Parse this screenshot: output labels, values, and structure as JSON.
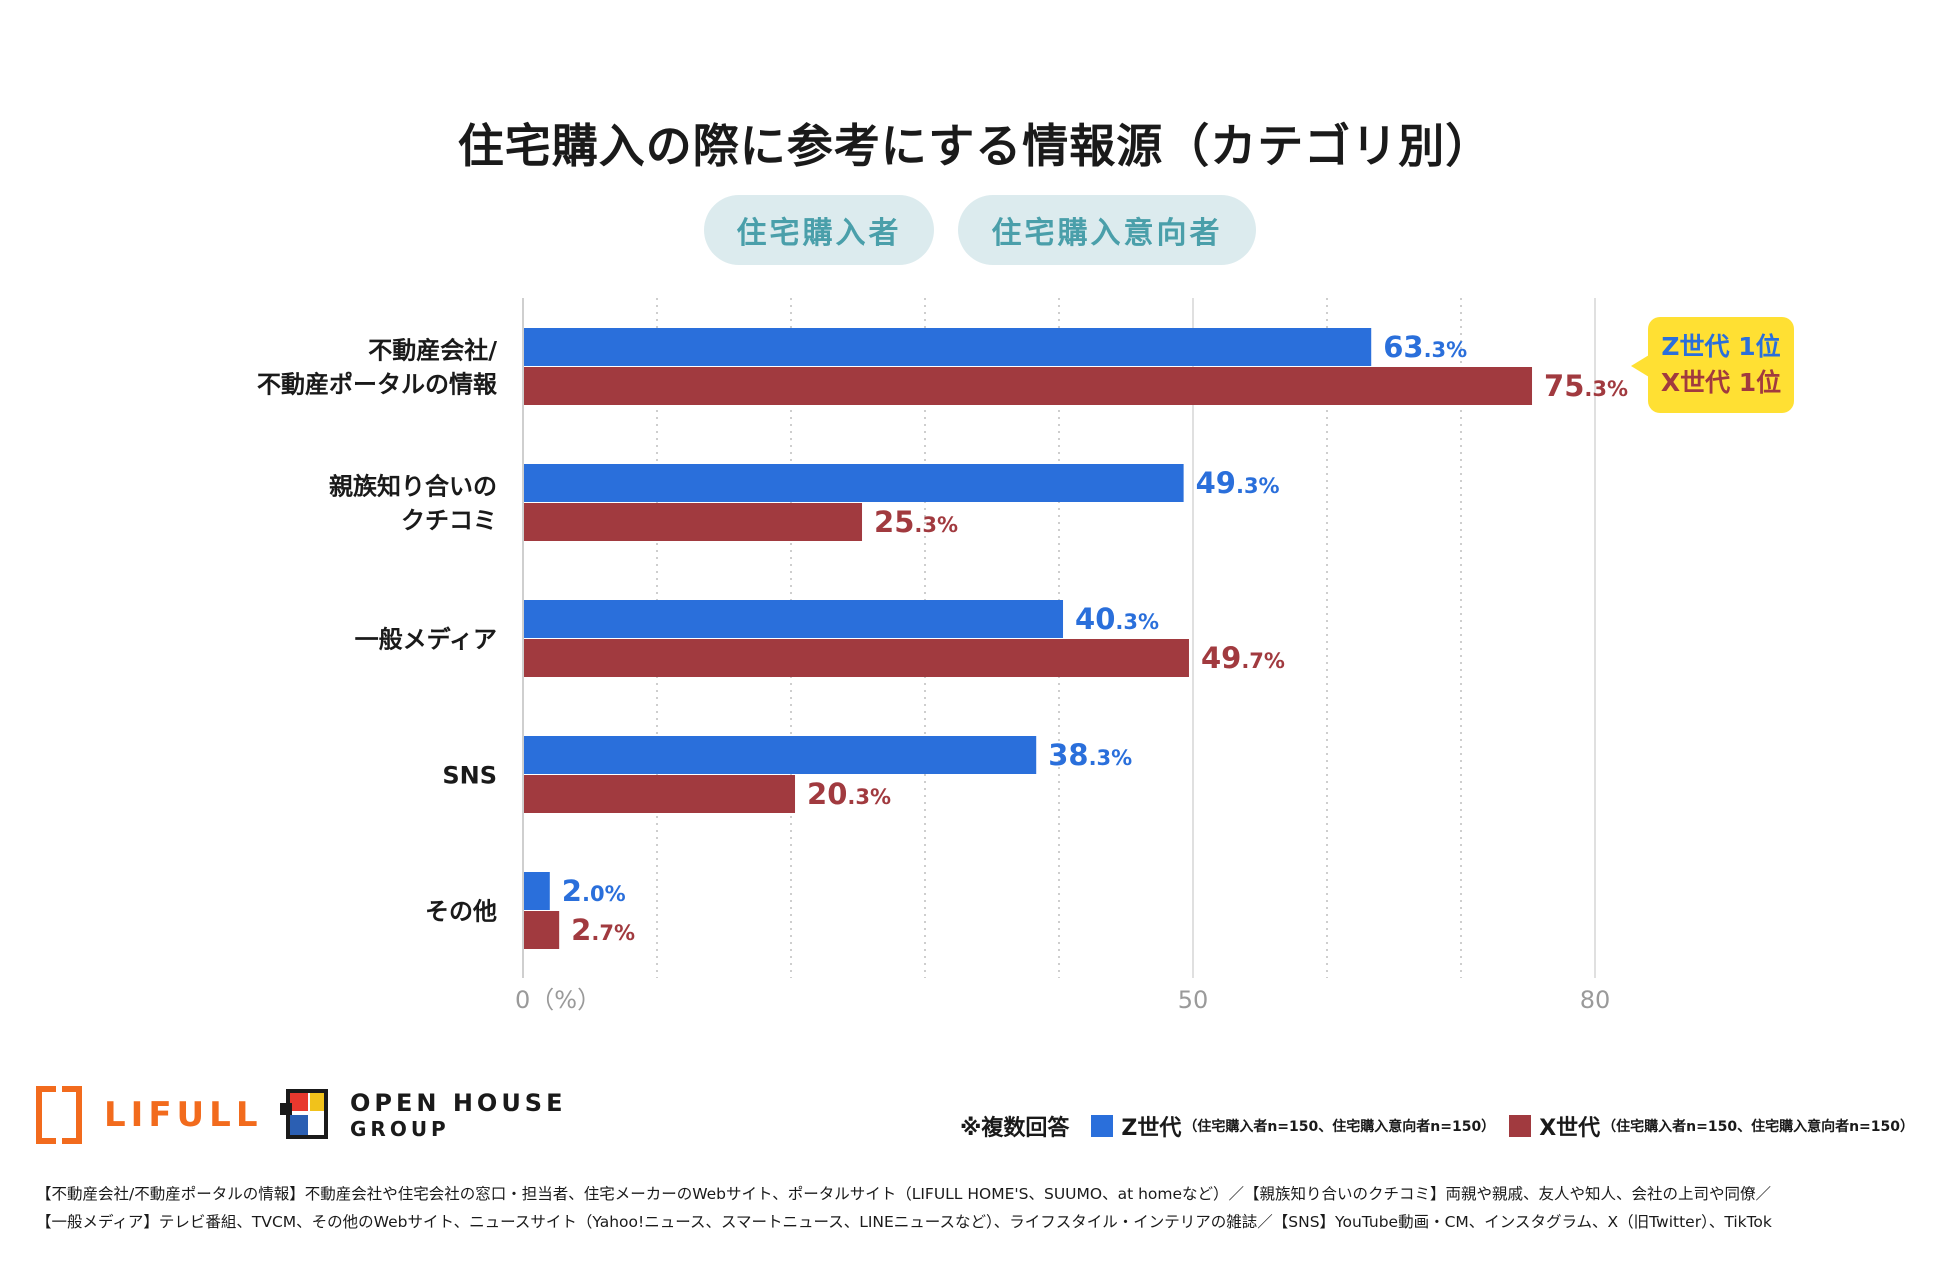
{
  "title": "住宅購入の際に参考にする情報源（カテゴリ別）",
  "pills": [
    "住宅購入者",
    "住宅購入意向者"
  ],
  "badge": {
    "z_line": "Z世代 1位",
    "x_line": "X世代 1位"
  },
  "colors": {
    "z": "#2a6fdb",
    "x": "#a13a3f",
    "badge_bg": "#ffe033",
    "pill_bg": "#dcebee",
    "pill_text": "#4a9faa"
  },
  "chart_data": {
    "type": "bar",
    "orientation": "horizontal",
    "categories": [
      [
        "不動産会社/",
        "不動産ポータルの情報"
      ],
      [
        "親族知り合いの",
        "クチコミ"
      ],
      [
        "一般メディア"
      ],
      [
        "SNS"
      ],
      [
        "その他"
      ]
    ],
    "series": [
      {
        "name": "Z世代",
        "values": [
          63.3,
          49.3,
          40.3,
          38.3,
          2.0
        ],
        "labels_main": [
          "63",
          "49",
          "40",
          "38",
          "2"
        ],
        "labels_dec": [
          ".3%",
          ".3%",
          ".3%",
          ".3%",
          ".0%"
        ]
      },
      {
        "name": "X世代",
        "values": [
          75.3,
          25.3,
          49.7,
          20.3,
          2.7
        ],
        "labels_main": [
          "75",
          "25",
          "49",
          "20",
          "2"
        ],
        "labels_dec": [
          ".3%",
          ".3%",
          ".7%",
          ".3%",
          ".7%"
        ]
      }
    ],
    "xlim": [
      0,
      80
    ],
    "xticks": [
      {
        "value": 0,
        "label": "0（%）"
      },
      {
        "value": 50,
        "label": "50"
      },
      {
        "value": 80,
        "label": "80"
      }
    ],
    "grid_minor": [
      10,
      20,
      30,
      40,
      60,
      70
    ],
    "legend_position": "bottom-right"
  },
  "logos": {
    "lifull": "LIFULL",
    "openhouse_1": "OPEN HOUSE",
    "openhouse_2": "GROUP"
  },
  "legend": {
    "note": "※複数回答",
    "z_label": "Z世代",
    "z_detail": "（住宅購入者n=150、住宅購入意向者n=150）",
    "x_label": "X世代",
    "x_detail": "（住宅購入者n=150、住宅購入意向者n=150）"
  },
  "footnote": [
    "【不動産会社/不動産ポータルの情報】不動産会社や住宅会社の窓口・担当者、住宅メーカーのWebサイト、ポータルサイト（LIFULL HOME'S、SUUMO、at homeなど）／【親族知り合いのクチコミ】両親や親戚、友人や知人、会社の上司や同僚／",
    "【一般メディア】テレビ番組、TVCM、その他のWebサイト、ニュースサイト（Yahoo!ニュース、スマートニュース、LINEニュースなど）、ライフスタイル・インテリアの雑誌／【SNS】YouTube動画・CM、インスタグラム、X（旧Twitter）、TikTok"
  ]
}
